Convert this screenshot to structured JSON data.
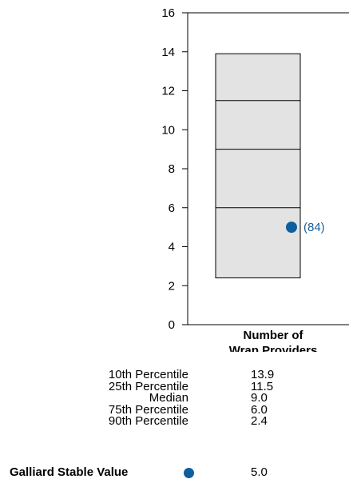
{
  "chart_data": {
    "type": "box",
    "ylim": [
      0,
      16
    ],
    "y_ticks": [
      "0",
      "2",
      "4",
      "6",
      "8",
      "10",
      "12",
      "14",
      "16"
    ],
    "xlabel_lines": [
      "Number of",
      "Wrap Providers"
    ],
    "percentiles": [
      13.9,
      11.5,
      9.0,
      6.0,
      2.4
    ],
    "point": {
      "value": 5.0,
      "label": "(84)",
      "color": "#0d5f9e"
    },
    "box_color": "#e3e3e3"
  },
  "stats": [
    {
      "label": "10th Percentile",
      "value": "13.9"
    },
    {
      "label": "25th Percentile",
      "value": "11.5"
    },
    {
      "label": "Median",
      "value": "9.0"
    },
    {
      "label": "75th Percentile",
      "value": "6.0"
    },
    {
      "label": "90th Percentile",
      "value": "2.4"
    }
  ],
  "marker": {
    "label": "Galliard Stable Value",
    "value": "5.0"
  }
}
